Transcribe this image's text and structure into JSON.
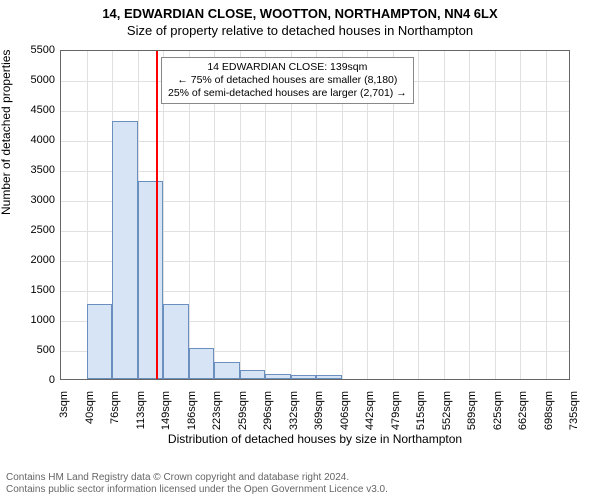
{
  "title_line1": "14, EDWARDIAN CLOSE, WOOTTON, NORTHAMPTON, NN4 6LX",
  "title_line2": "Size of property relative to detached houses in Northampton",
  "chart": {
    "type": "histogram",
    "xlabel": "Distribution of detached houses by size in Northampton",
    "ylabel": "Number of detached properties",
    "ylim": [
      0,
      5500
    ],
    "ytick_step": 500,
    "yticks": [
      0,
      500,
      1000,
      1500,
      2000,
      2500,
      3000,
      3500,
      4000,
      4500,
      5000,
      5500
    ],
    "xticks": [
      "3sqm",
      "40sqm",
      "76sqm",
      "113sqm",
      "149sqm",
      "186sqm",
      "223sqm",
      "259sqm",
      "296sqm",
      "332sqm",
      "369sqm",
      "406sqm",
      "442sqm",
      "479sqm",
      "515sqm",
      "552sqm",
      "589sqm",
      "625sqm",
      "662sqm",
      "698sqm",
      "735sqm"
    ],
    "bar_values": [
      0,
      1250,
      4300,
      3300,
      1250,
      520,
      280,
      150,
      90,
      70,
      60,
      0,
      0,
      0,
      0,
      0,
      0,
      0,
      0,
      0
    ],
    "bar_fill": "#d6e4f5",
    "bar_stroke": "#6b8fbf",
    "background_color": "#ffffff",
    "grid_color": "#e0e0e0",
    "axis_color": "#666666",
    "label_fontsize": 12,
    "tick_fontsize": 11,
    "reference_line": {
      "value_sqm": 139,
      "color": "#ff0000",
      "width": 2
    },
    "annotation": {
      "lines": [
        "14 EDWARDIAN CLOSE: 139sqm",
        "← 75% of detached houses are smaller (8,180)",
        "25% of semi-detached houses are larger (2,701) →"
      ],
      "border_color": "#888888",
      "background": "#ffffff",
      "fontsize": 10.5
    }
  },
  "footer_line1": "Contains HM Land Registry data © Crown copyright and database right 2024.",
  "footer_line2": "Contains public sector information licensed under the Open Government Licence v3.0."
}
